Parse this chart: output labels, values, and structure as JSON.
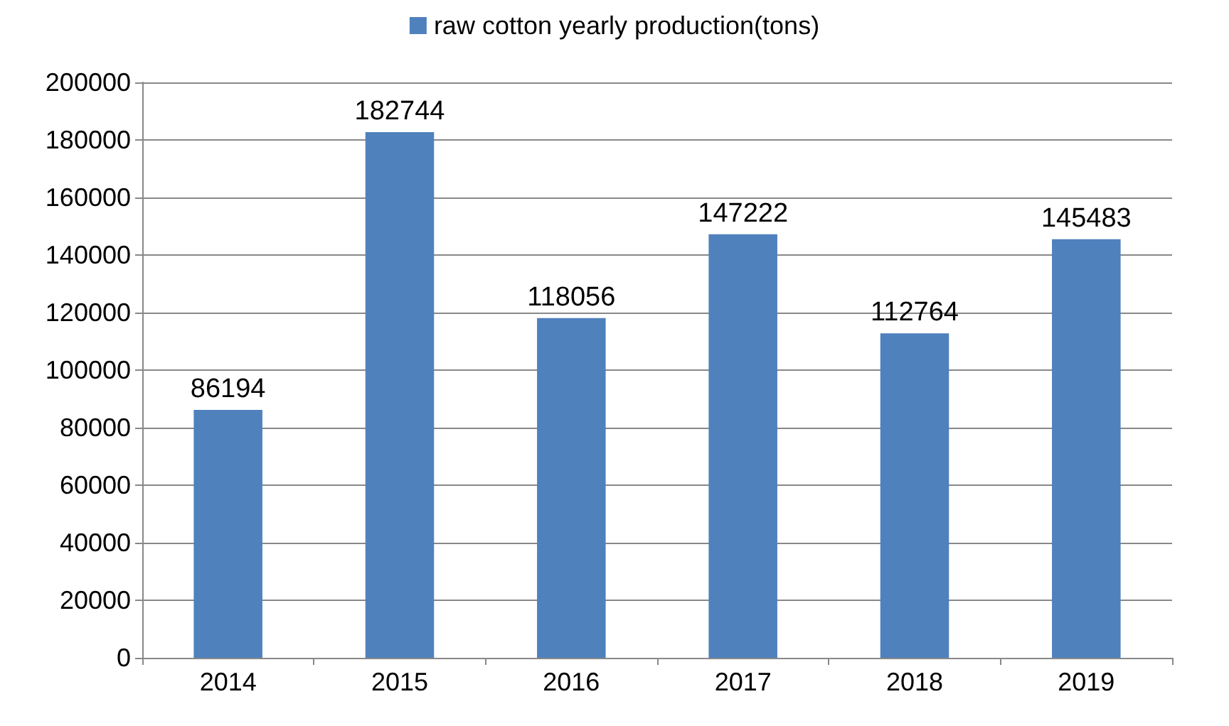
{
  "chart_data": {
    "type": "bar",
    "categories": [
      "2014",
      "2015",
      "2016",
      "2017",
      "2018",
      "2019"
    ],
    "series": [
      {
        "name": "raw cotton yearly production(tons)",
        "color": "#4f81bd",
        "values": [
          86194,
          182744,
          118056,
          147222,
          112764,
          145483
        ]
      }
    ],
    "ylim": [
      0,
      200000
    ],
    "yticks": [
      0,
      20000,
      40000,
      60000,
      80000,
      100000,
      120000,
      140000,
      160000,
      180000,
      200000
    ],
    "grid": "y",
    "legend": "top",
    "data_labels": true
  }
}
